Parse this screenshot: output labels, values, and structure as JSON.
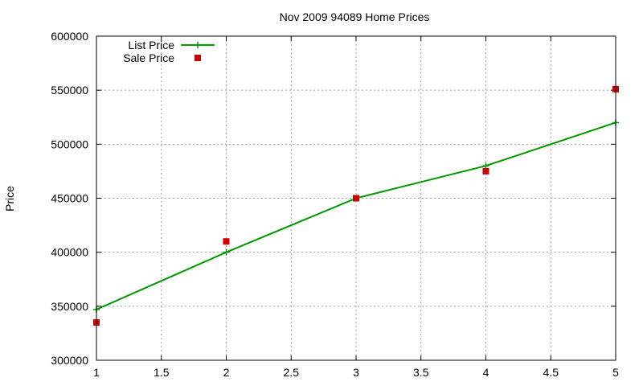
{
  "chart_data": {
    "type": "line",
    "title": "Nov 2009 94089 Home Prices",
    "xlabel": "",
    "ylabel": "Price",
    "xlim": [
      1,
      5
    ],
    "ylim": [
      300000,
      600000
    ],
    "x_ticks": [
      "1",
      "1.5",
      "2",
      "2.5",
      "3",
      "3.5",
      "4",
      "4.5",
      "5"
    ],
    "y_ticks": [
      "300000",
      "350000",
      "400000",
      "450000",
      "500000",
      "550000",
      "600000"
    ],
    "grid": true,
    "legend_position": "top-left",
    "series": [
      {
        "name": "List Price",
        "style": "line-with-plus-markers",
        "color": "#009900",
        "x": [
          1,
          2,
          3,
          4,
          5
        ],
        "y": [
          347000,
          400000,
          450000,
          480000,
          520000
        ]
      },
      {
        "name": "Sale Price",
        "style": "square-markers",
        "color": "#cc0000",
        "x": [
          1,
          2,
          3,
          4,
          5
        ],
        "y": [
          335000,
          410000,
          450000,
          475000,
          551000
        ]
      }
    ]
  }
}
